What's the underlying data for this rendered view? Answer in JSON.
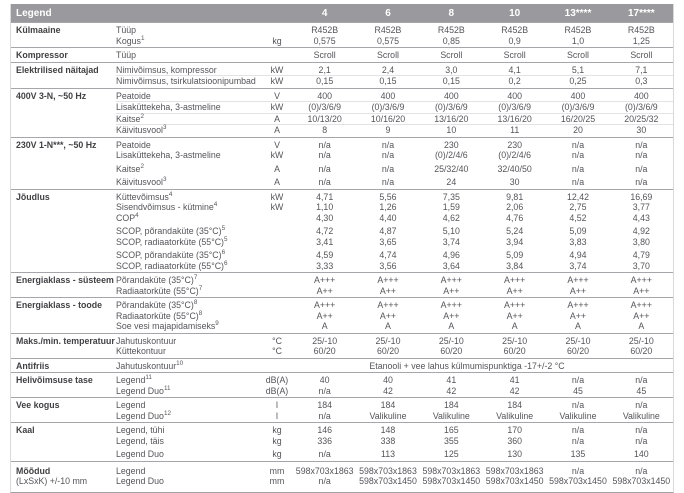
{
  "colors": {
    "header_bg": "#9A9A9E",
    "header_text": "#FFFFFF",
    "body_text": "#55555A",
    "group_border": "#A6A6AA"
  },
  "header": {
    "legend_label": "Legend",
    "columns": [
      "4",
      "6",
      "8",
      "10",
      "13****",
      "17****"
    ]
  },
  "table": {
    "groups": [
      {
        "label": "Külmaaine",
        "rows": [
          {
            "param": "Tüüp",
            "sup": "",
            "unit": "",
            "values": [
              "R452B",
              "R452B",
              "R452B",
              "R452B",
              "R452B",
              "R452B"
            ]
          },
          {
            "param": "Kogus",
            "sup": "1",
            "unit": "kg",
            "values": [
              "0,575",
              "0,575",
              "0,85",
              "0,9",
              "1,0",
              "1,25"
            ]
          }
        ]
      },
      {
        "label": "Kompressor",
        "rows": [
          {
            "param": "Tüüp",
            "sup": "",
            "unit": "",
            "values": [
              "Scroll",
              "Scroll",
              "Scroll",
              "Scroll",
              "Scroll",
              "Scroll"
            ]
          }
        ]
      },
      {
        "label": "Elektrilised näitajad",
        "rows": [
          {
            "param": "Nimivõimsus, kompressor",
            "sup": "",
            "unit": "kW",
            "values": [
              "2,1",
              "2,4",
              "3,0",
              "4,1",
              "5,1",
              "7,1"
            ]
          },
          {
            "param": "Nimivõimsus, tsirkulatsioonipumbad",
            "sup": "",
            "unit": "kW",
            "hairline": true,
            "values": [
              "0,15",
              "0,15",
              "0,15",
              "0,2",
              "0,25",
              "0,3"
            ]
          }
        ]
      },
      {
        "label": "400V 3-N, ~50 Hz",
        "rows": [
          {
            "param": "Peatoide",
            "sup": "",
            "unit": "V",
            "values": [
              "400",
              "400",
              "400",
              "400",
              "400",
              "400"
            ]
          },
          {
            "param": "Lisaküttekeha, 3-astmeline",
            "sup": "",
            "unit": "kW",
            "hairline": true,
            "values": [
              "(0)/3/6/9",
              "(0)/3/6/9",
              "(0)/3/6/9",
              "(0)/3/6/9",
              "(0)/3/6/9",
              "(0)/3/6/9"
            ]
          },
          {
            "param": "Kaitse",
            "sup": "2",
            "unit": "A",
            "hairline": true,
            "values": [
              "10/13/20",
              "10/16/20",
              "13/16/20",
              "13/16/20",
              "16/20/25",
              "20/25/32"
            ]
          },
          {
            "param": "Käivitusvool",
            "sup": "3",
            "unit": "A",
            "hairline": true,
            "values": [
              "8",
              "9",
              "10",
              "11",
              "20",
              "30"
            ]
          }
        ]
      },
      {
        "label": "230V 1-N***, ~50 Hz",
        "rows": [
          {
            "param": "Peatoide",
            "sup": "",
            "unit": "V",
            "values": [
              "n/a",
              "n/a",
              "230",
              "230",
              "n/a",
              "n/a"
            ]
          },
          {
            "param": "Lisaküttekeha, 3-astmeline",
            "sup": "",
            "unit": "kW",
            "values": [
              "n/a",
              "n/a",
              "(0)/2/4/6",
              "(0)/2/4/6",
              "n/a",
              "n/a"
            ]
          },
          {
            "param": "Kaitse",
            "sup": "2",
            "unit": "A",
            "gap": true,
            "values": [
              "n/a",
              "n/a",
              "25/32/40",
              "32/40/50",
              "n/a",
              "n/a"
            ]
          },
          {
            "param": "Käivitusvool",
            "sup": "3",
            "unit": "A",
            "gap": true,
            "values": [
              "n/a",
              "n/a",
              "24",
              "30",
              "n/a",
              "n/a"
            ]
          }
        ]
      },
      {
        "label": "Jõudlus",
        "rows": [
          {
            "param": "Küttevõimsus",
            "sup": "4",
            "unit": "kW",
            "values": [
              "4,71",
              "5,56",
              "7,35",
              "9,81",
              "12,42",
              "16,69"
            ]
          },
          {
            "param": "Sisendvõimsus - kütmine",
            "sup": "4",
            "unit": "kW",
            "values": [
              "1,10",
              "1,26",
              "1,59",
              "2,06",
              "2,75",
              "3,77"
            ]
          },
          {
            "param": "COP",
            "sup": "4",
            "unit": "",
            "values": [
              "4,30",
              "4,40",
              "4,62",
              "4,76",
              "4,52",
              "4,43"
            ]
          },
          {
            "param": "SCOP, põrandaküte (35°C)",
            "sup": "5",
            "unit": "",
            "gap": true,
            "values": [
              "4,72",
              "4,87",
              "5,10",
              "5,24",
              "5,09",
              "4,92"
            ]
          },
          {
            "param": "SCOP, radiaatorküte (55°C)",
            "sup": "5",
            "unit": "",
            "values": [
              "3,41",
              "3,65",
              "3,74",
              "3,94",
              "3,83",
              "3,80"
            ]
          },
          {
            "param": "SCOP, põrandaküte (35°C)",
            "sup": "6",
            "unit": "",
            "gap": true,
            "values": [
              "4,59",
              "4,74",
              "4,96",
              "5,09",
              "4,94",
              "4,79"
            ]
          },
          {
            "param": "SCOP, radiaatorküte (55°C)",
            "sup": "6",
            "unit": "",
            "values": [
              "3,33",
              "3,56",
              "3,64",
              "3,84",
              "3,74",
              "3,70"
            ]
          }
        ]
      },
      {
        "label": "Energiaklass - süsteem",
        "rows": [
          {
            "param": "Põrandaküte (35°C)",
            "sup": "7",
            "unit": "",
            "values": [
              "A+++",
              "A+++",
              "A+++",
              "A+++",
              "A+++",
              "A+++"
            ]
          },
          {
            "param": "Radiaatorküte (55°C)",
            "sup": "7",
            "unit": "",
            "values": [
              "A++",
              "A++",
              "A++",
              "A++",
              "A++",
              "A++"
            ]
          }
        ]
      },
      {
        "label": "Energiaklass - toode",
        "rows": [
          {
            "param": "Põrandaküte (35°C)",
            "sup": "8",
            "unit": "",
            "values": [
              "A+++",
              "A+++",
              "A+++",
              "A+++",
              "A+++",
              "A+++"
            ]
          },
          {
            "param": "Radiaatorküte (55°C)",
            "sup": "8",
            "unit": "",
            "values": [
              "A++",
              "A++",
              "A++",
              "A++",
              "A++",
              "A++"
            ]
          },
          {
            "param": "Soe vesi majapidamiseks",
            "sup": "9",
            "unit": "",
            "values": [
              "A",
              "A",
              "A",
              "A",
              "A",
              "A"
            ]
          }
        ]
      },
      {
        "label": "Maks./min. temperatuur",
        "rows": [
          {
            "param": "Jahutuskontuur",
            "sup": "",
            "unit": "°C",
            "values": [
              "25/-10",
              "25/-10",
              "25/-10",
              "25/-10",
              "25/-10",
              "25/-10"
            ]
          },
          {
            "param": "Küttekontuur",
            "sup": "",
            "unit": "°C",
            "values": [
              "60/20",
              "60/20",
              "60/20",
              "60/20",
              "60/20",
              "60/20"
            ]
          }
        ]
      },
      {
        "label": "Antifriis",
        "rows": [
          {
            "param": "Jahutuskontuur",
            "sup": "10",
            "unit": "",
            "span": "Etanooli + vee lahus külmumispunktiga -17+/-2 °C"
          }
        ]
      },
      {
        "label": "Helivõimsuse tase",
        "rows": [
          {
            "param": "Legend",
            "sup": "11",
            "unit": "dB(A)",
            "values": [
              "40",
              "40",
              "41",
              "41",
              "n/a",
              "n/a"
            ]
          },
          {
            "param": "Legend Duo",
            "sup": "11",
            "unit": "dB(A)",
            "values": [
              "n/a",
              "42",
              "42",
              "42",
              "45",
              "45"
            ]
          }
        ]
      },
      {
        "label": "Vee kogus",
        "rows": [
          {
            "param": "Legend",
            "sup": "",
            "unit": "l",
            "values": [
              "184",
              "184",
              "184",
              "184",
              "n/a",
              "n/a"
            ]
          },
          {
            "param": "Legend Duo",
            "sup": "12",
            "unit": "l",
            "values": [
              "n/a",
              "Valikuline",
              "Valikuline",
              "Valikuline",
              "Valikuline",
              "Valikuline"
            ]
          }
        ]
      },
      {
        "label": "Kaal",
        "rows": [
          {
            "param": "Legend, tühi",
            "sup": "",
            "unit": "kg",
            "values": [
              "146",
              "148",
              "165",
              "170",
              "n/a",
              "n/a"
            ]
          },
          {
            "param": "Legend, täis",
            "sup": "",
            "unit": "kg",
            "values": [
              "336",
              "338",
              "355",
              "360",
              "n/a",
              "n/a"
            ]
          },
          {
            "param": "Legend Duo",
            "sup": "",
            "unit": "kg",
            "gap": true,
            "values": [
              "n/a",
              "113",
              "125",
              "130",
              "135",
              "140"
            ]
          }
        ]
      },
      {
        "label": "Mõõdud",
        "label2": "(LxSxK) +/-10 mm",
        "pad": true,
        "rows": [
          {
            "param": "Legend",
            "sup": "",
            "unit": "mm",
            "values": [
              "598x703x1863",
              "598x703x1863",
              "598x703x1863",
              "598x703x1863",
              "n/a",
              "n/a"
            ]
          },
          {
            "param": "Legend Duo",
            "sup": "",
            "unit": "mm",
            "values": [
              "n/a",
              "598x703x1450",
              "598x703x1450",
              "598x703x1450",
              "598x703x1450",
              "598x703x1450"
            ]
          }
        ]
      }
    ]
  }
}
